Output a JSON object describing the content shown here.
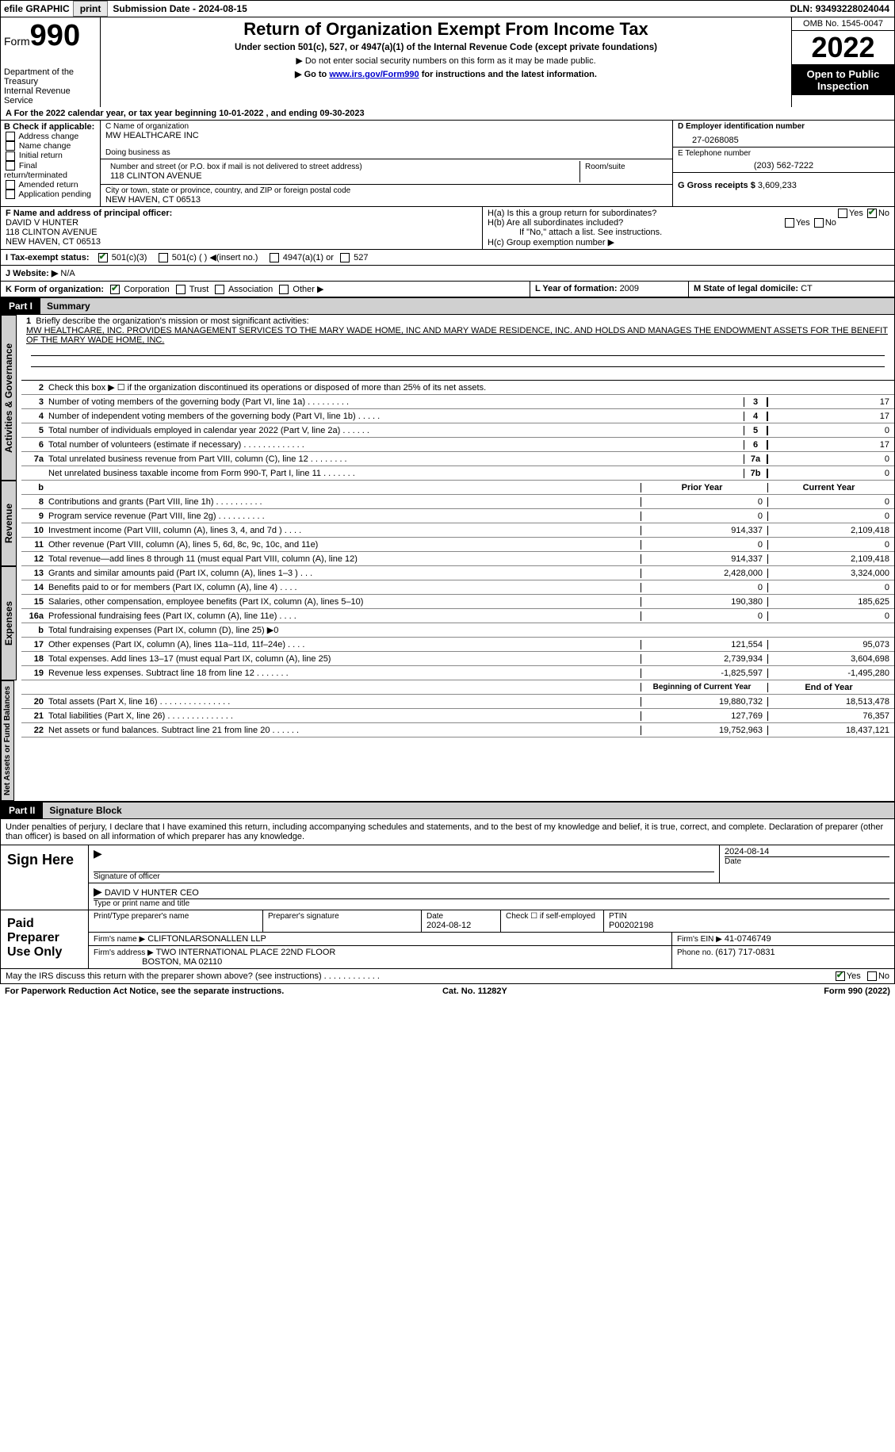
{
  "topbar": {
    "efile_label": "efile GRAPHIC",
    "print_btn": "print",
    "submission_label": "Submission Date - ",
    "submission_date": "2024-08-15",
    "dln_label": "DLN: ",
    "dln": "93493228024044"
  },
  "header": {
    "form_word": "Form",
    "form_num": "990",
    "dept": "Department of the Treasury",
    "irs": "Internal Revenue Service",
    "title": "Return of Organization Exempt From Income Tax",
    "subtitle": "Under section 501(c), 527, or 4947(a)(1) of the Internal Revenue Code (except private foundations)",
    "line1": "▶ Do not enter social security numbers on this form as it may be made public.",
    "line2_pre": "▶ Go to ",
    "line2_link": "www.irs.gov/Form990",
    "line2_post": " for instructions and the latest information.",
    "omb": "OMB No. 1545-0047",
    "year": "2022",
    "inspect": "Open to Public Inspection"
  },
  "row_a": "A  For the 2022 calendar year, or tax year beginning 10-01-2022     , and ending 09-30-2023",
  "col_b": {
    "label": "B Check if applicable:",
    "opts": [
      "Address change",
      "Name change",
      "Initial return",
      "Final return/terminated",
      "Amended return",
      "Application pending"
    ]
  },
  "col_c": {
    "name_label": "C Name of organization",
    "name": "MW HEALTHCARE INC",
    "dba_label": "Doing business as",
    "addr_label": "Number and street (or P.O. box if mail is not delivered to street address)",
    "room_label": "Room/suite",
    "addr": "118 CLINTON AVENUE",
    "city_label": "City or town, state or province, country, and ZIP or foreign postal code",
    "city": "NEW HAVEN, CT  06513"
  },
  "col_de": {
    "d_label": "D Employer identification number",
    "ein": "27-0268085",
    "e_label": "E Telephone number",
    "phone": "(203) 562-7222",
    "g_label": "G Gross receipts $ ",
    "g_val": "3,609,233"
  },
  "row_f": {
    "label": "F  Name and address of principal officer:",
    "name": "DAVID V HUNTER",
    "addr1": "118 CLINTON AVENUE",
    "addr2": "NEW HAVEN, CT  06513"
  },
  "row_h": {
    "ha": "H(a)  Is this a group return for subordinates?",
    "hb": "H(b)  Are all subordinates included?",
    "hb_note": "If \"No,\" attach a list. See instructions.",
    "hc": "H(c)  Group exemption number ▶",
    "yes": "Yes",
    "no": "No"
  },
  "row_i": {
    "label": "I   Tax-exempt status:",
    "o1": "501(c)(3)",
    "o2": "501(c) (  ) ◀(insert no.)",
    "o3": "4947(a)(1) or",
    "o4": "527"
  },
  "row_j": {
    "label": "J   Website: ▶",
    "val": "  N/A"
  },
  "row_k": {
    "label": "K Form of organization:",
    "o1": "Corporation",
    "o2": "Trust",
    "o3": "Association",
    "o4": "Other ▶"
  },
  "row_l": {
    "label": "L Year of formation: ",
    "val": "2009"
  },
  "row_m": {
    "label": "M State of legal domicile: ",
    "val": "CT"
  },
  "part1": {
    "num": "Part I",
    "title": "Summary"
  },
  "mission": {
    "num": "1",
    "label": "Briefly describe the organization's mission or most significant activities:",
    "text": "MW HEALTHCARE, INC. PROVIDES MANAGEMENT SERVICES TO THE MARY WADE HOME, INC AND MARY WADE RESIDENCE, INC. AND HOLDS AND MANAGES THE ENDOWMENT ASSETS FOR THE BENEFIT OF THE MARY WADE HOME, INC."
  },
  "line2": "Check this box ▶ ☐  if the organization discontinued its operations or disposed of more than 25% of its net assets.",
  "governance_lines": [
    {
      "n": "3",
      "t": "Number of voting members of the governing body (Part VI, line 1a)  .  .  .  .  .  .  .  .  .",
      "box": "3",
      "v": "17"
    },
    {
      "n": "4",
      "t": "Number of independent voting members of the governing body (Part VI, line 1b)  .  .  .  .  .",
      "box": "4",
      "v": "17"
    },
    {
      "n": "5",
      "t": "Total number of individuals employed in calendar year 2022 (Part V, line 2a)  .  .  .  .  .  .",
      "box": "5",
      "v": "0"
    },
    {
      "n": "6",
      "t": "Total number of volunteers (estimate if necessary)   .  .  .  .  .  .  .  .  .  .  .  .  .",
      "box": "6",
      "v": "17"
    },
    {
      "n": "7a",
      "t": "Total unrelated business revenue from Part VIII, column (C), line 12   .  .  .  .  .  .  .  .",
      "box": "7a",
      "v": "0"
    },
    {
      "n": "",
      "t": "Net unrelated business taxable income from Form 990-T, Part I, line 11   .  .  .  .  .  .  .",
      "box": "7b",
      "v": "0"
    }
  ],
  "rev_hdr": {
    "c1": "Prior Year",
    "c2": "Current Year"
  },
  "revenue_lines": [
    {
      "n": "8",
      "t": "Contributions and grants (Part VIII, line 1h)   .  .  .  .  .  .  .  .  .  .",
      "v1": "0",
      "v2": "0"
    },
    {
      "n": "9",
      "t": "Program service revenue (Part VIII, line 2g)   .  .  .  .  .  .  .  .  .  .",
      "v1": "0",
      "v2": "0"
    },
    {
      "n": "10",
      "t": "Investment income (Part VIII, column (A), lines 3, 4, and 7d )   .  .  .  .",
      "v1": "914,337",
      "v2": "2,109,418"
    },
    {
      "n": "11",
      "t": "Other revenue (Part VIII, column (A), lines 5, 6d, 8c, 9c, 10c, and 11e)",
      "v1": "0",
      "v2": "0"
    },
    {
      "n": "12",
      "t": "Total revenue—add lines 8 through 11 (must equal Part VIII, column (A), line 12)",
      "v1": "914,337",
      "v2": "2,109,418"
    }
  ],
  "expense_lines": [
    {
      "n": "13",
      "t": "Grants and similar amounts paid (Part IX, column (A), lines 1–3 )   .  .  .",
      "v1": "2,428,000",
      "v2": "3,324,000"
    },
    {
      "n": "14",
      "t": "Benefits paid to or for members (Part IX, column (A), line 4)   .  .  .  .",
      "v1": "0",
      "v2": "0"
    },
    {
      "n": "15",
      "t": "Salaries, other compensation, employee benefits (Part IX, column (A), lines 5–10)",
      "v1": "190,380",
      "v2": "185,625"
    },
    {
      "n": "16a",
      "t": "Professional fundraising fees (Part IX, column (A), line 11e)   .  .  .  .",
      "v1": "0",
      "v2": "0"
    },
    {
      "n": "b",
      "t": "Total fundraising expenses (Part IX, column (D), line 25) ▶0",
      "v1": "",
      "v2": "",
      "shaded": true
    },
    {
      "n": "17",
      "t": "Other expenses (Part IX, column (A), lines 11a–11d, 11f–24e)   .  .  .  .",
      "v1": "121,554",
      "v2": "95,073"
    },
    {
      "n": "18",
      "t": "Total expenses. Add lines 13–17 (must equal Part IX, column (A), line 25)",
      "v1": "2,739,934",
      "v2": "3,604,698"
    },
    {
      "n": "19",
      "t": "Revenue less expenses. Subtract line 18 from line 12   .  .  .  .  .  .  .",
      "v1": "-1,825,597",
      "v2": "-1,495,280"
    }
  ],
  "net_hdr": {
    "c1": "Beginning of Current Year",
    "c2": "End of Year"
  },
  "net_lines": [
    {
      "n": "20",
      "t": "Total assets (Part X, line 16)   .  .  .  .  .  .  .  .  .  .  .  .  .  .  .",
      "v1": "19,880,732",
      "v2": "18,513,478"
    },
    {
      "n": "21",
      "t": "Total liabilities (Part X, line 26)   .  .  .  .  .  .  .  .  .  .  .  .  .  .",
      "v1": "127,769",
      "v2": "76,357"
    },
    {
      "n": "22",
      "t": "Net assets or fund balances. Subtract line 21 from line 20   .  .  .  .  .  .",
      "v1": "19,752,963",
      "v2": "18,437,121"
    }
  ],
  "vtabs": {
    "gov": "Activities & Governance",
    "rev": "Revenue",
    "exp": "Expenses",
    "net": "Net Assets or Fund Balances"
  },
  "part2": {
    "num": "Part II",
    "title": "Signature Block"
  },
  "sig_intro": "Under penalties of perjury, I declare that I have examined this return, including accompanying schedules and statements, and to the best of my knowledge and belief, it is true, correct, and complete. Declaration of preparer (other than officer) is based on all information of which preparer has any knowledge.",
  "sign_here": {
    "label": "Sign Here",
    "sig_label": "Signature of officer",
    "date": "2024-08-14",
    "date_label": "Date",
    "name": "DAVID V HUNTER  CEO",
    "name_label": "Type or print name and title"
  },
  "paid": {
    "label": "Paid Preparer Use Only",
    "c1_label": "Print/Type preparer's name",
    "c2_label": "Preparer's signature",
    "c3_label": "Date",
    "c3_val": "2024-08-12",
    "c4_label": "Check ☐ if self-employed",
    "c5_label": "PTIN",
    "c5_val": "P00202198",
    "firm_name_label": "Firm's name   ▶",
    "firm_name": "CLIFTONLARSONALLEN LLP",
    "firm_ein_label": "Firm's EIN ▶",
    "firm_ein": "41-0746749",
    "firm_addr_label": "Firm's address ▶",
    "firm_addr1": "TWO INTERNATIONAL PLACE 22ND FLOOR",
    "firm_addr2": "BOSTON, MA  02110",
    "phone_label": "Phone no. ",
    "phone": "(617) 717-0831"
  },
  "discuss": {
    "text": "May the IRS discuss this return with the preparer shown above? (see instructions)   .  .  .  .  .  .  .  .  .  .  .  .",
    "yes": "Yes",
    "no": "No"
  },
  "footer": {
    "left": "For Paperwork Reduction Act Notice, see the separate instructions.",
    "mid": "Cat. No. 11282Y",
    "right": "Form 990 (2022)"
  },
  "colors": {
    "header_black": "#000000",
    "gray_bg": "#d0d0d0",
    "link": "#0000cc"
  }
}
